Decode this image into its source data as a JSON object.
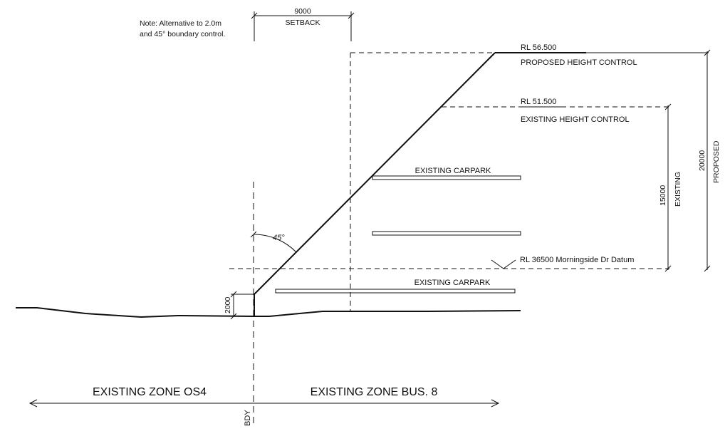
{
  "note": {
    "line1": "Note: Alternative to 2.0m",
    "line2": "and 45° boundary control."
  },
  "setback": {
    "value": "9000",
    "label": "SETBACK"
  },
  "proposed_height": {
    "rl": "RL 56.500",
    "label": "PROPOSED HEIGHT CONTROL"
  },
  "existing_height": {
    "rl": "RL 51.500",
    "label": "EXISTING HEIGHT CONTROL"
  },
  "datum": {
    "label": "RL 36500 Morningside Dr Datum"
  },
  "carparks": {
    "upper": "EXISTING CARPARK",
    "lower": "EXISTING CARPARK"
  },
  "dimensions": {
    "existing_value": "15000",
    "existing_label": "EXISTING",
    "proposed_value": "20000",
    "proposed_label": "PROPOSED",
    "base_height": "2000"
  },
  "angle": {
    "label": "45°"
  },
  "zones": {
    "left": "EXISTING ZONE OS4",
    "right": "EXISTING ZONE BUS. 8"
  },
  "boundary": {
    "label": "BDY"
  }
}
